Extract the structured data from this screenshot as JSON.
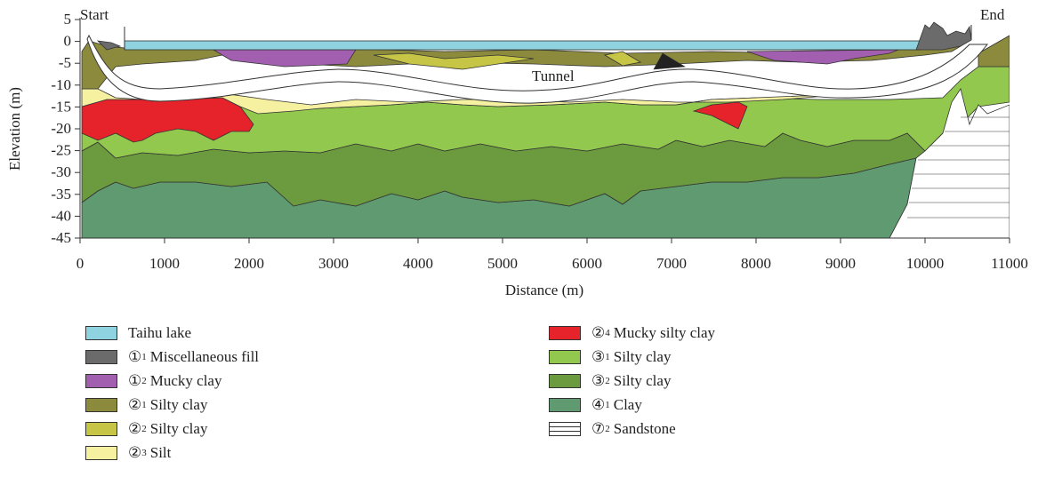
{
  "diagram": {
    "start_label": "Start",
    "end_label": "End",
    "tunnel_label": "Tunnel",
    "x_axis": {
      "title": "Distance (m)",
      "ticks": [
        "0",
        "1000",
        "2000",
        "3000",
        "4000",
        "5000",
        "6000",
        "7000",
        "8000",
        "9000",
        "10000",
        "11000"
      ]
    },
    "y_axis": {
      "title": "Elevation (m)",
      "ticks": [
        "5",
        "0",
        "-5",
        "-10",
        "-15",
        "-20",
        "-25",
        "-30",
        "-35",
        "-40",
        "-45"
      ]
    }
  },
  "legend": {
    "items": [
      {
        "circle": "",
        "sub": "",
        "text": "Taihu lake",
        "color": "#8fd3e0"
      },
      {
        "circle": "①",
        "sub": "1",
        "text": "Miscellaneous fill",
        "color": "#6b6b6b"
      },
      {
        "circle": "①",
        "sub": "2",
        "text": "Mucky clay",
        "color": "#a25fb0"
      },
      {
        "circle": "②",
        "sub": "1",
        "text": "Silty clay",
        "color": "#8c8a3c"
      },
      {
        "circle": "②",
        "sub": "2",
        "text": "Silty clay",
        "color": "#c7c545"
      },
      {
        "circle": "②",
        "sub": "3",
        "text": "Silt",
        "color": "#f5f1a0"
      },
      {
        "circle": "②",
        "sub": "4",
        "text": "Mucky silty clay",
        "color": "#e6232a"
      },
      {
        "circle": "③",
        "sub": "1",
        "text": "Silty clay",
        "color": "#92c84e"
      },
      {
        "circle": "③",
        "sub": "2",
        "text": "Silty clay",
        "color": "#6b9a3f"
      },
      {
        "circle": "④",
        "sub": "1",
        "text": "Clay",
        "color": "#5f9a70"
      },
      {
        "circle": "⑦",
        "sub": "2",
        "text": "Sandstone",
        "color": "pattern"
      }
    ]
  }
}
